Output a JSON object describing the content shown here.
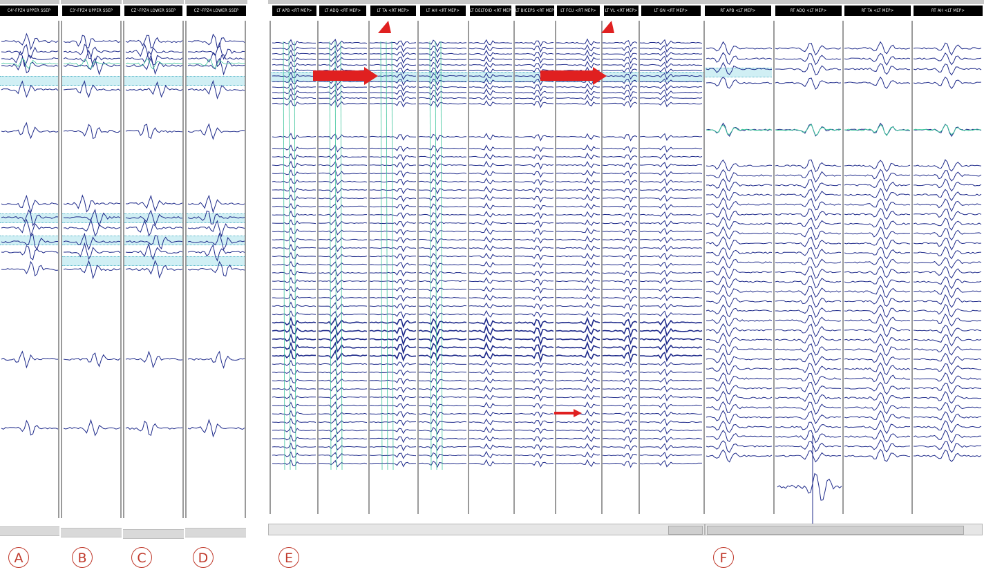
{
  "panels": {
    "A": {
      "title": "C4'-FPZ4 UPPER SSEP",
      "label": "A"
    },
    "B": {
      "title": "C3'-FPZ4 UPPER SSEP",
      "label": "B"
    },
    "C": {
      "title": "CZ'-FPZ4 LOWER SSEP",
      "label": "C"
    },
    "D": {
      "title": "CZ'-FPZ4 LOWER SSEP",
      "label": "D"
    },
    "E": {
      "label": "E",
      "columns": [
        "LT APB <RT MEP>",
        "LT ADQ <RT MEP>",
        "LT TA <RT MEP>",
        "LT AH <RT MEP>",
        "LT DELTOID <RT MEP>",
        "LT BICEPS <RT MEP>",
        "LT FCU <RT MEP>",
        "LT VL <RT MEP>",
        "LT GN <RT MEP>"
      ]
    },
    "F": {
      "label": "F",
      "columns": [
        "RT APB <LT MEP>",
        "RT ADQ <LT MEP>",
        "RT TA <LT MEP>",
        "RT AH <LT MEP>"
      ]
    }
  },
  "colors": {
    "trace": "#1e2a8a",
    "trace_alt": "#3bc49a",
    "highlight": "#8fd8e6",
    "annotation_red": "#e02020",
    "label_red": "#c0392b"
  },
  "annotations": {
    "icons": [
      "arrowhead-icon",
      "arrow-right-icon"
    ]
  }
}
